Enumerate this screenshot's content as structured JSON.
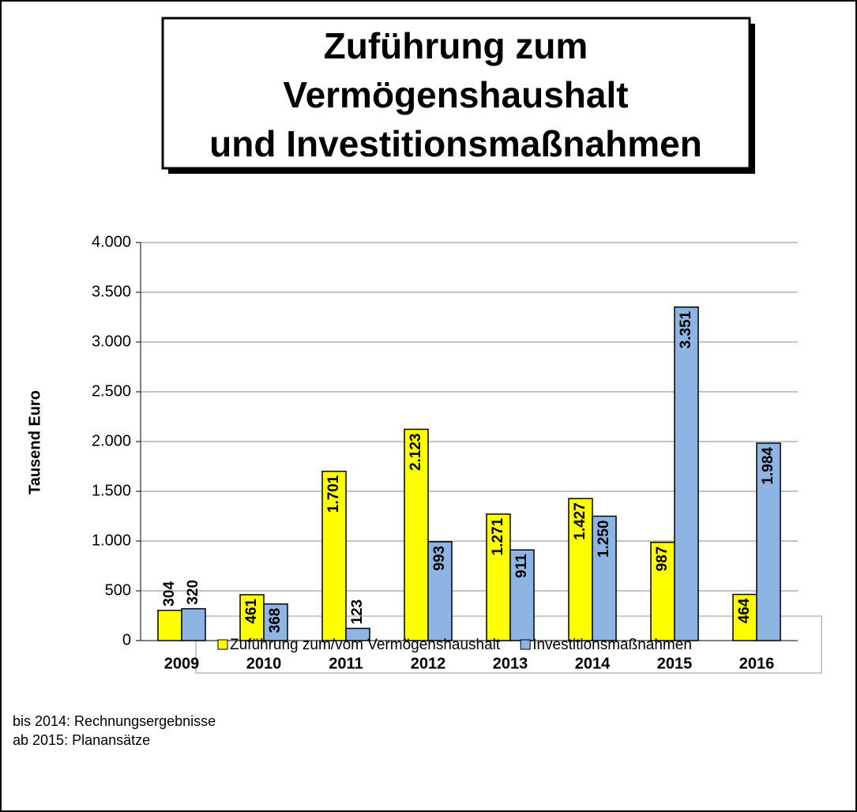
{
  "chart_data": {
    "type": "bar",
    "title": [
      "Zuführung zum",
      "Vermögenshaushalt",
      "und Investitionsmaßnahmen"
    ],
    "y_label": "Tausend Euro",
    "categories": [
      "2009",
      "2010",
      "2011",
      "2012",
      "2013",
      "2014",
      "2015",
      "2016"
    ],
    "series": [
      {
        "name": "Zuführung zum/vom Vermögenshaushalt",
        "color": "#ffff00",
        "values": [
          304,
          461,
          1701,
          2123,
          1271,
          1427,
          987,
          464
        ],
        "value_labels": [
          "304",
          "461",
          "1.701",
          "2.123",
          "1.271",
          "1.427",
          "987",
          "464"
        ]
      },
      {
        "name": "Investitionsmaßnahmen",
        "color": "#8eb4e3",
        "values": [
          320,
          368,
          123,
          993,
          911,
          1250,
          3351,
          1984
        ],
        "value_labels": [
          "320",
          "368",
          "123",
          "993",
          "911",
          "1.250",
          "3.351",
          "1.984"
        ]
      }
    ],
    "ylim": [
      0,
      4000
    ],
    "yticks": [
      0,
      500,
      {
        "value": 1000,
        "label": "1.000"
      },
      {
        "value": 1500,
        "label": "1.500"
      },
      {
        "value": 2000,
        "label": "2.000"
      },
      {
        "value": 2500,
        "label": "2.500"
      },
      {
        "value": 3000,
        "label": "3.000"
      },
      {
        "value": 3500,
        "label": "3.500"
      },
      {
        "value": 4000,
        "label": "4.000"
      }
    ],
    "grid": true,
    "notes": [
      "bis 2014: Rechnungsergebnisse",
      "ab 2015:  Planansätze"
    ],
    "legend": "bottom"
  }
}
